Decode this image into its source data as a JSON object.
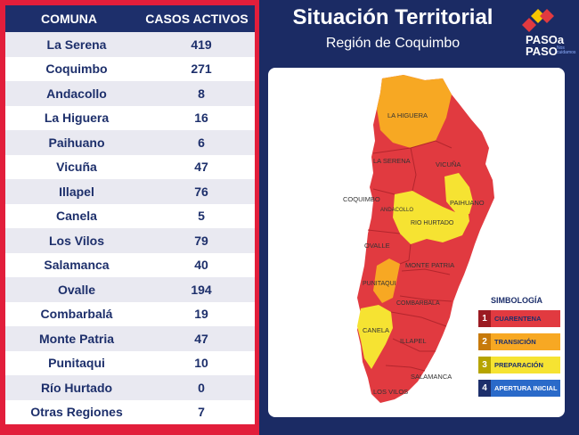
{
  "table": {
    "header": {
      "comuna": "COMUNA",
      "casos": "CASOS ACTIVOS"
    },
    "rows": [
      {
        "comuna": "La Serena",
        "casos": "419"
      },
      {
        "comuna": "Coquimbo",
        "casos": "271"
      },
      {
        "comuna": "Andacollo",
        "casos": "8"
      },
      {
        "comuna": "La Higuera",
        "casos": "16"
      },
      {
        "comuna": "Paihuano",
        "casos": "6"
      },
      {
        "comuna": "Vicuña",
        "casos": "47"
      },
      {
        "comuna": "Illapel",
        "casos": "76"
      },
      {
        "comuna": "Canela",
        "casos": "5"
      },
      {
        "comuna": "Los Vilos",
        "casos": "79"
      },
      {
        "comuna": "Salamanca",
        "casos": "40"
      },
      {
        "comuna": "Ovalle",
        "casos": "194"
      },
      {
        "comuna": "Combarbalá",
        "casos": "19"
      },
      {
        "comuna": "Monte Patria",
        "casos": "47"
      },
      {
        "comuna": "Punitaqui",
        "casos": "10"
      },
      {
        "comuna": "Río Hurtado",
        "casos": "0"
      },
      {
        "comuna": "Otras Regiones",
        "casos": "7"
      }
    ]
  },
  "header": {
    "title": "Situación Territorial",
    "subtitle": "Región de Coquimbo",
    "logo_line1": "PASOa",
    "logo_line2": "PASO",
    "logo_tagline": "Nos cuidamos"
  },
  "map": {
    "labels": {
      "la_higuera": "LA HIGUERA",
      "la_serena": "LA SERENA",
      "vicuna": "VICUÑA",
      "coquimbo": "COQUIMBO",
      "andacollo": "ANDACOLLO",
      "paihuano": "PAIHUANO",
      "rio_hurtado": "RIO HURTADO",
      "ovalle": "OVALLE",
      "monte_patria": "MONTE PATRIA",
      "punitaqui": "PUNITAQUI",
      "combarbala": "COMBARBALA",
      "canela": "CANELA",
      "illapel": "ILLAPEL",
      "salamanca": "SALAMANCA",
      "los_vilos": "LOS VILOS"
    },
    "colors": {
      "cuarentena": "#e13a40",
      "transicion": "#f7a823",
      "preparacion": "#f6e332",
      "apertura": "#2a6ac9"
    }
  },
  "legend": {
    "title": "SIMBOLOGÍA",
    "items": [
      {
        "num": "1",
        "label": "CUARENTENA",
        "num_color": "#9b1b22",
        "color": "#e13a40"
      },
      {
        "num": "2",
        "label": "TRANSICIÓN",
        "num_color": "#c77a0b",
        "color": "#f7a823"
      },
      {
        "num": "3",
        "label": "PREPARACIÓN",
        "num_color": "#b6a400",
        "color": "#f6e332"
      },
      {
        "num": "4",
        "label": "APERTURA INICIAL",
        "num_color": "#1d2f6b",
        "color": "#2a6ac9"
      }
    ]
  }
}
